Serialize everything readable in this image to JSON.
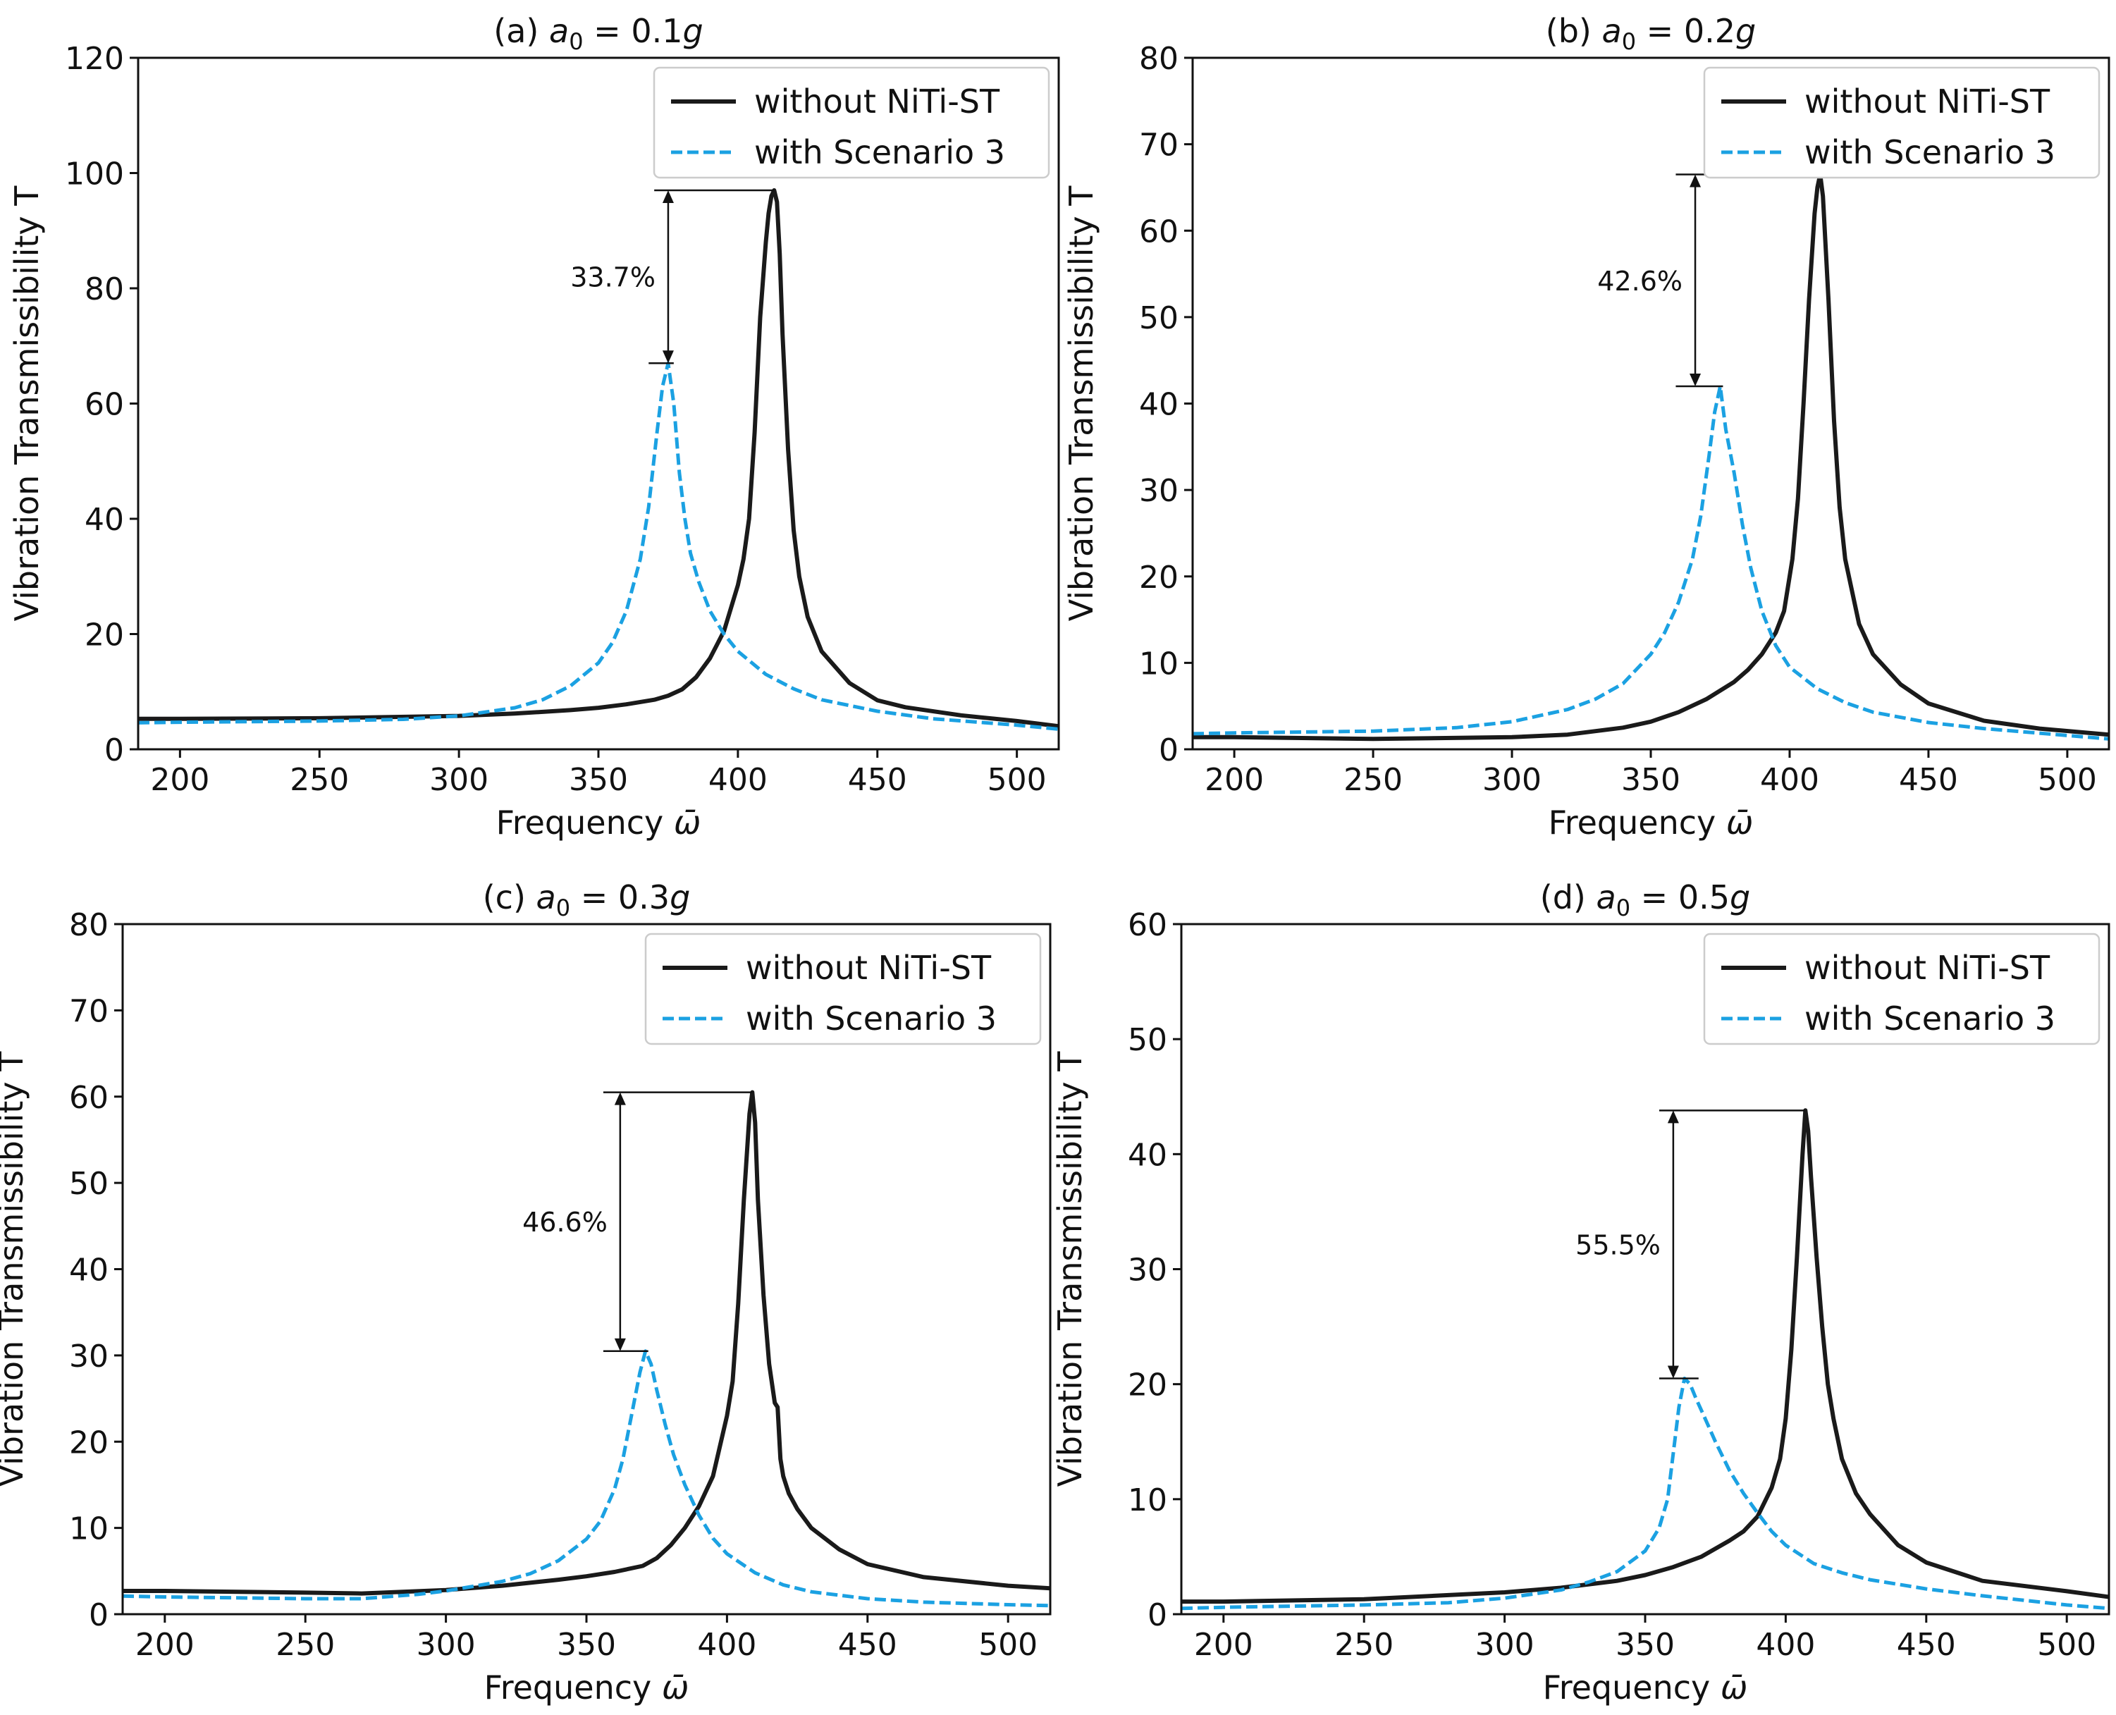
{
  "chart_data": [
    {
      "type": "line",
      "panel": "a",
      "title_prefix": "(a) ",
      "title_var": "a",
      "title_sub": "0",
      "title_rest": " = 0.1",
      "title_unit": "g",
      "xlabel_text": "Frequency ",
      "xlabel_sym": "ω̄",
      "ylabel": "Vibration Transmissibility  T",
      "xlim": [
        185,
        515
      ],
      "ylim": [
        0,
        120
      ],
      "xticks": [
        "200",
        "250",
        "300",
        "350",
        "400",
        "450",
        "500"
      ],
      "yticks": [
        "0",
        "20",
        "40",
        "60",
        "80",
        "100",
        "120"
      ],
      "legend_position": "top-right",
      "annotation": {
        "label": "33.7%",
        "x": 375,
        "y_top": 97,
        "y_bottom": 67,
        "line_x_end_top": 413,
        "line_x_start_top": 370,
        "line_x_start_bottom": 368,
        "line_x_end_bottom": 377
      },
      "series": [
        {
          "name": "without NiTi-ST",
          "style": "solid",
          "color": "#1a1a1a",
          "x": [
            185,
            200,
            250,
            300,
            320,
            340,
            350,
            360,
            370,
            375,
            380,
            385,
            390,
            395,
            400,
            402,
            404,
            406,
            408,
            410,
            411,
            412,
            413,
            414,
            415,
            416,
            418,
            420,
            422,
            425,
            430,
            440,
            450,
            460,
            480,
            500,
            515
          ],
          "y": [
            5.3,
            5.3,
            5.4,
            5.8,
            6.2,
            6.8,
            7.2,
            7.8,
            8.6,
            9.3,
            10.4,
            12.5,
            15.8,
            20.5,
            28.5,
            33,
            40,
            55,
            75,
            88,
            93,
            96,
            97,
            95,
            86,
            72,
            52,
            38,
            30,
            23,
            17,
            11.5,
            8.5,
            7.3,
            5.9,
            4.9,
            4.0
          ]
        },
        {
          "name": "with Scenario 3",
          "style": "dashed",
          "color": "#1ba1e2",
          "x": [
            185,
            200,
            250,
            280,
            300,
            320,
            330,
            340,
            350,
            355,
            360,
            365,
            368,
            371,
            373,
            375,
            377,
            379,
            381,
            383,
            386,
            390,
            395,
            400,
            410,
            420,
            430,
            450,
            470,
            500,
            515
          ],
          "y": [
            4.6,
            4.7,
            4.9,
            5.2,
            5.8,
            7.2,
            8.6,
            11,
            15,
            18.5,
            24,
            33,
            42,
            55,
            63,
            67,
            60,
            48,
            40,
            34,
            29,
            24,
            20,
            17,
            13,
            10.5,
            8.6,
            6.6,
            5.3,
            4.2,
            3.5
          ]
        }
      ],
      "legend": [
        "without NiTi-ST",
        "with Scenario 3"
      ]
    },
    {
      "type": "line",
      "panel": "b",
      "title_prefix": "(b) ",
      "title_var": "a",
      "title_sub": "0",
      "title_rest": " = 0.2",
      "title_unit": "g",
      "xlabel_text": "Frequency ",
      "xlabel_sym": "ω̄",
      "ylabel": "Vibration Transmissibility  T",
      "xlim": [
        185,
        515
      ],
      "ylim": [
        0,
        80
      ],
      "xticks": [
        "200",
        "250",
        "300",
        "350",
        "400",
        "450",
        "500"
      ],
      "yticks": [
        "0",
        "10",
        "20",
        "30",
        "40",
        "50",
        "60",
        "70",
        "80"
      ],
      "legend_position": "top-right",
      "annotation": {
        "label": "42.6%",
        "x": 366,
        "y_top": 66.5,
        "y_bottom": 42,
        "line_x_end_top": 411,
        "line_x_start_top": 359,
        "line_x_start_bottom": 359,
        "line_x_end_bottom": 376
      },
      "series": [
        {
          "name": "without NiTi-ST",
          "style": "solid",
          "color": "#1a1a1a",
          "x": [
            185,
            200,
            250,
            300,
            320,
            340,
            350,
            360,
            370,
            380,
            385,
            390,
            395,
            398,
            401,
            403,
            405,
            407,
            409,
            410,
            411,
            412,
            414,
            416,
            418,
            420,
            425,
            430,
            440,
            450,
            470,
            490,
            515
          ],
          "y": [
            1.4,
            1.4,
            1.2,
            1.4,
            1.7,
            2.5,
            3.2,
            4.3,
            5.8,
            7.8,
            9.2,
            11,
            13.5,
            16,
            22,
            29,
            40,
            52,
            62,
            65,
            66.5,
            64,
            52,
            38,
            28,
            22,
            14.5,
            11,
            7.5,
            5.3,
            3.3,
            2.4,
            1.7
          ]
        },
        {
          "name": "with Scenario 3",
          "style": "dashed",
          "color": "#1ba1e2",
          "x": [
            185,
            200,
            250,
            280,
            300,
            320,
            330,
            340,
            350,
            355,
            360,
            365,
            368,
            371,
            373,
            375,
            377,
            380,
            383,
            386,
            390,
            395,
            400,
            410,
            420,
            430,
            450,
            470,
            500,
            515
          ],
          "y": [
            1.8,
            1.9,
            2.1,
            2.5,
            3.2,
            4.6,
            5.8,
            7.6,
            11,
            13.5,
            17,
            22,
            27,
            34,
            39,
            42,
            37,
            32,
            26,
            21,
            16,
            12,
            9.5,
            7,
            5.4,
            4.3,
            3.1,
            2.4,
            1.6,
            1.2
          ]
        }
      ],
      "legend": [
        "without NiTi-ST",
        "with Scenario 3"
      ]
    },
    {
      "type": "line",
      "panel": "c",
      "title_prefix": "(c) ",
      "title_var": "a",
      "title_sub": "0",
      "title_rest": " = 0.3",
      "title_unit": "g",
      "xlabel_text": "Frequency ",
      "xlabel_sym": "ω̄",
      "ylabel": "Vibration Transmissibility  T",
      "xlim": [
        185,
        515
      ],
      "ylim": [
        0,
        80
      ],
      "xticks": [
        "200",
        "250",
        "300",
        "350",
        "400",
        "450",
        "500"
      ],
      "yticks": [
        "0",
        "10",
        "20",
        "30",
        "40",
        "50",
        "60",
        "70",
        "80"
      ],
      "legend_position": "top-right",
      "annotation": {
        "label": "46.6%",
        "x": 362,
        "y_top": 60.5,
        "y_bottom": 30.5,
        "line_x_end_top": 409,
        "line_x_start_top": 356,
        "line_x_start_bottom": 356,
        "line_x_end_bottom": 372
      },
      "series": [
        {
          "name": "without NiTi-ST",
          "style": "solid",
          "color": "#1a1a1a",
          "x": [
            185,
            200,
            250,
            270,
            300,
            320,
            340,
            350,
            360,
            370,
            375,
            380,
            385,
            390,
            395,
            400,
            402,
            404,
            406,
            408,
            409,
            410,
            411,
            413,
            415,
            417,
            418,
            419,
            420,
            422,
            425,
            430,
            440,
            450,
            470,
            500,
            515
          ],
          "y": [
            2.7,
            2.7,
            2.5,
            2.4,
            2.8,
            3.3,
            4.0,
            4.4,
            4.9,
            5.6,
            6.5,
            8.0,
            10,
            12.5,
            16,
            23,
            27,
            36,
            48,
            58,
            60.5,
            57,
            48,
            37,
            29,
            24.5,
            24,
            18,
            16,
            14,
            12.2,
            10,
            7.5,
            5.8,
            4.3,
            3.3,
            3.0
          ]
        },
        {
          "name": "with Scenario 3",
          "style": "dashed",
          "color": "#1ba1e2",
          "x": [
            185,
            200,
            250,
            270,
            290,
            300,
            320,
            330,
            340,
            350,
            355,
            360,
            363,
            366,
            369,
            371,
            373,
            375,
            378,
            381,
            385,
            390,
            395,
            400,
            410,
            420,
            430,
            450,
            470,
            500,
            515
          ],
          "y": [
            2.1,
            2.0,
            1.8,
            1.8,
            2.3,
            2.7,
            3.8,
            4.7,
            6.2,
            8.7,
            10.8,
            14.5,
            18,
            23,
            28,
            30.5,
            29,
            26,
            22,
            18.5,
            15,
            11.5,
            8.8,
            7.0,
            4.8,
            3.4,
            2.6,
            1.8,
            1.4,
            1.1,
            1.0
          ]
        }
      ],
      "legend": [
        "without NiTi-ST",
        "with Scenario 3"
      ]
    },
    {
      "type": "line",
      "panel": "d",
      "title_prefix": "(d) ",
      "title_var": "a",
      "title_sub": "0",
      "title_rest": " = 0.5",
      "title_unit": "g",
      "xlabel_text": "Frequency ",
      "xlabel_sym": "ω̄",
      "ylabel": "Vibration Transmissibility T",
      "xlim": [
        185,
        515
      ],
      "ylim": [
        0,
        60
      ],
      "xticks": [
        "200",
        "250",
        "300",
        "350",
        "400",
        "450",
        "500"
      ],
      "yticks": [
        "0",
        "10",
        "20",
        "30",
        "40",
        "50",
        "60"
      ],
      "legend_position": "top-right",
      "annotation": {
        "label": "55.5%",
        "x": 360,
        "y_top": 43.8,
        "y_bottom": 20.5,
        "line_x_end_top": 407,
        "line_x_start_top": 355,
        "line_x_start_bottom": 355,
        "line_x_end_bottom": 369
      },
      "series": [
        {
          "name": "without NiTi-ST",
          "style": "solid",
          "color": "#1a1a1a",
          "x": [
            185,
            200,
            250,
            300,
            320,
            340,
            350,
            360,
            370,
            380,
            385,
            390,
            395,
            398,
            400,
            402,
            404,
            406,
            407,
            408,
            409,
            411,
            413,
            415,
            417,
            420,
            425,
            430,
            440,
            450,
            470,
            500,
            515
          ],
          "y": [
            1.1,
            1.1,
            1.3,
            1.9,
            2.3,
            2.9,
            3.4,
            4.1,
            5.0,
            6.4,
            7.2,
            8.5,
            11,
            13.5,
            17,
            23,
            31,
            40,
            43.8,
            42,
            38,
            31,
            25,
            20,
            17,
            13.5,
            10.5,
            8.7,
            6.0,
            4.5,
            2.9,
            2.0,
            1.5
          ]
        },
        {
          "name": "with Scenario 3",
          "style": "dashed",
          "color": "#1ba1e2",
          "x": [
            185,
            200,
            250,
            280,
            300,
            320,
            330,
            340,
            350,
            355,
            358,
            360,
            362,
            364,
            366,
            368,
            371,
            375,
            380,
            385,
            390,
            395,
            400,
            410,
            420,
            430,
            450,
            470,
            500,
            515
          ],
          "y": [
            0.5,
            0.6,
            0.8,
            1.0,
            1.4,
            2.1,
            2.8,
            3.7,
            5.5,
            7.5,
            10,
            14,
            18,
            20.5,
            20,
            18.8,
            17.2,
            15,
            12.5,
            10.5,
            8.8,
            7.2,
            6.0,
            4.4,
            3.6,
            3.0,
            2.2,
            1.6,
            0.8,
            0.5
          ]
        }
      ],
      "legend": [
        "without NiTi-ST",
        "with Scenario 3"
      ]
    }
  ]
}
